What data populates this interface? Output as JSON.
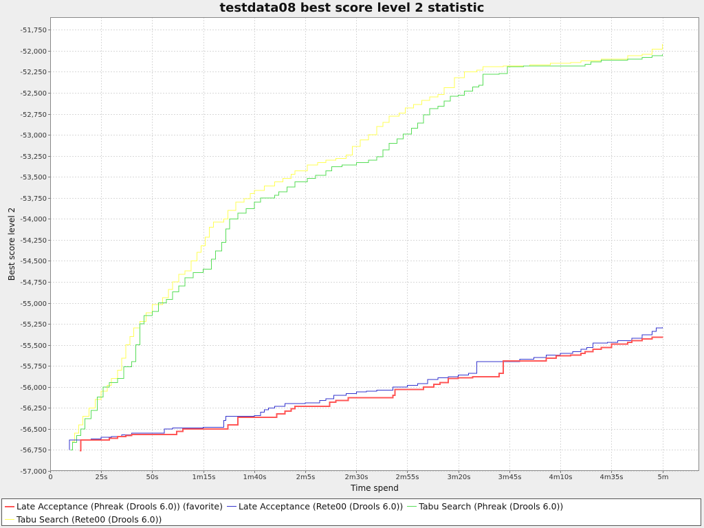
{
  "chart_data": {
    "type": "line",
    "title": "testdata08 best score level 2 statistic",
    "xlabel": "Time spend",
    "ylabel": "Best score level 2",
    "xlim": [
      0,
      318
    ],
    "ylim": [
      -57000,
      -51600
    ],
    "grid": true,
    "legend_position": "bottom",
    "x_ticks": [
      {
        "value": 0,
        "label": "0"
      },
      {
        "value": 25,
        "label": "25s"
      },
      {
        "value": 50,
        "label": "50s"
      },
      {
        "value": 75,
        "label": "1m15s"
      },
      {
        "value": 100,
        "label": "1m40s"
      },
      {
        "value": 125,
        "label": "2m5s"
      },
      {
        "value": 150,
        "label": "2m30s"
      },
      {
        "value": 175,
        "label": "2m55s"
      },
      {
        "value": 200,
        "label": "3m20s"
      },
      {
        "value": 225,
        "label": "3m45s"
      },
      {
        "value": 250,
        "label": "4m10s"
      },
      {
        "value": 275,
        "label": "4m35s"
      },
      {
        "value": 300,
        "label": "5m"
      }
    ],
    "y_ticks": [
      {
        "value": -51750,
        "label": "-51,750"
      },
      {
        "value": -52000,
        "label": "-52,000"
      },
      {
        "value": -52250,
        "label": "-52,250"
      },
      {
        "value": -52500,
        "label": "-52,500"
      },
      {
        "value": -52750,
        "label": "-52,750"
      },
      {
        "value": -53000,
        "label": "-53,000"
      },
      {
        "value": -53250,
        "label": "-53,250"
      },
      {
        "value": -53500,
        "label": "-53,500"
      },
      {
        "value": -53750,
        "label": "-53,750"
      },
      {
        "value": -54000,
        "label": "-54,000"
      },
      {
        "value": -54250,
        "label": "-54,250"
      },
      {
        "value": -54500,
        "label": "-54,500"
      },
      {
        "value": -54750,
        "label": "-54,750"
      },
      {
        "value": -55000,
        "label": "-55,000"
      },
      {
        "value": -55250,
        "label": "-55,250"
      },
      {
        "value": -55500,
        "label": "-55,500"
      },
      {
        "value": -55750,
        "label": "-55,750"
      },
      {
        "value": -56000,
        "label": "-56,000"
      },
      {
        "value": -56250,
        "label": "-56,250"
      },
      {
        "value": -56500,
        "label": "-56,500"
      },
      {
        "value": -56750,
        "label": "-56,750"
      },
      {
        "value": -57000,
        "label": "-57,000"
      }
    ],
    "series": [
      {
        "name": "Late Acceptance (Phreak (Drools 6.0)) (favorite)",
        "color": "#ff5555",
        "points": [
          [
            14.5,
            -56760
          ],
          [
            15,
            -56630
          ],
          [
            20,
            -56630
          ],
          [
            25,
            -56630
          ],
          [
            29,
            -56610
          ],
          [
            33,
            -56590
          ],
          [
            37,
            -56580
          ],
          [
            40,
            -56565
          ],
          [
            50,
            -56565
          ],
          [
            55,
            -56565
          ],
          [
            61,
            -56565
          ],
          [
            62,
            -56530
          ],
          [
            65,
            -56500
          ],
          [
            75,
            -56500
          ],
          [
            85,
            -56500
          ],
          [
            87,
            -56450
          ],
          [
            91,
            -56450
          ],
          [
            92,
            -56360
          ],
          [
            100,
            -56360
          ],
          [
            110,
            -56360
          ],
          [
            111,
            -56320
          ],
          [
            115,
            -56290
          ],
          [
            118,
            -56260
          ],
          [
            120,
            -56230
          ],
          [
            125,
            -56230
          ],
          [
            136,
            -56230
          ],
          [
            137,
            -56180
          ],
          [
            140,
            -56160
          ],
          [
            146,
            -56130
          ],
          [
            150,
            -56130
          ],
          [
            160,
            -56130
          ],
          [
            166,
            -56130
          ],
          [
            168,
            -56100
          ],
          [
            169,
            -56030
          ],
          [
            180,
            -56030
          ],
          [
            183,
            -56000
          ],
          [
            188,
            -55970
          ],
          [
            191,
            -55950
          ],
          [
            195,
            -55900
          ],
          [
            200,
            -55890
          ],
          [
            207,
            -55880
          ],
          [
            220,
            -55840
          ],
          [
            222,
            -55690
          ],
          [
            240,
            -55690
          ],
          [
            243,
            -55660
          ],
          [
            248,
            -55630
          ],
          [
            255,
            -55620
          ],
          [
            260,
            -55600
          ],
          [
            262,
            -55580
          ],
          [
            266,
            -55550
          ],
          [
            270,
            -55530
          ],
          [
            275,
            -55490
          ],
          [
            283,
            -55470
          ],
          [
            285,
            -55450
          ],
          [
            290,
            -55430
          ],
          [
            295,
            -55410
          ],
          [
            300,
            -55400
          ]
        ]
      },
      {
        "name": "Late Acceptance (Rete00 (Drools 6.0))",
        "color": "#3333cc",
        "points": [
          [
            9.5,
            -56750
          ],
          [
            9.5,
            -56630
          ],
          [
            14,
            -56630
          ],
          [
            20,
            -56620
          ],
          [
            25,
            -56600
          ],
          [
            30,
            -56590
          ],
          [
            35,
            -56570
          ],
          [
            40,
            -56550
          ],
          [
            55,
            -56550
          ],
          [
            56,
            -56500
          ],
          [
            60,
            -56490
          ],
          [
            65,
            -56490
          ],
          [
            75,
            -56480
          ],
          [
            85,
            -56400
          ],
          [
            86,
            -56350
          ],
          [
            100,
            -56340
          ],
          [
            103,
            -56300
          ],
          [
            105,
            -56270
          ],
          [
            107,
            -56250
          ],
          [
            110,
            -56230
          ],
          [
            115,
            -56200
          ],
          [
            125,
            -56190
          ],
          [
            130,
            -56190
          ],
          [
            132,
            -56160
          ],
          [
            135,
            -56140
          ],
          [
            139,
            -56100
          ],
          [
            145,
            -56080
          ],
          [
            150,
            -56060
          ],
          [
            155,
            -56050
          ],
          [
            160,
            -56040
          ],
          [
            165,
            -56040
          ],
          [
            168,
            -56000
          ],
          [
            170,
            -56000
          ],
          [
            175,
            -55980
          ],
          [
            180,
            -55960
          ],
          [
            185,
            -55910
          ],
          [
            190,
            -55890
          ],
          [
            195,
            -55880
          ],
          [
            200,
            -55860
          ],
          [
            205,
            -55840
          ],
          [
            209,
            -55700
          ],
          [
            220,
            -55700
          ],
          [
            230,
            -55670
          ],
          [
            237,
            -55650
          ],
          [
            243,
            -55620
          ],
          [
            250,
            -55600
          ],
          [
            256,
            -55580
          ],
          [
            260,
            -55550
          ],
          [
            263,
            -55530
          ],
          [
            266,
            -55480
          ],
          [
            273,
            -55470
          ],
          [
            278,
            -55450
          ],
          [
            285,
            -55420
          ],
          [
            290,
            -55380
          ],
          [
            295,
            -55340
          ],
          [
            297,
            -55300
          ],
          [
            300,
            -55290
          ]
        ]
      },
      {
        "name": "Tabu Search (Phreak (Drools 6.0))",
        "color": "#55dd55",
        "points": [
          [
            10,
            -56750
          ],
          [
            11,
            -56660
          ],
          [
            13,
            -56580
          ],
          [
            15,
            -56500
          ],
          [
            17,
            -56380
          ],
          [
            20,
            -56280
          ],
          [
            23,
            -56120
          ],
          [
            26,
            -56000
          ],
          [
            29,
            -55950
          ],
          [
            33,
            -55900
          ],
          [
            36,
            -55760
          ],
          [
            40,
            -55700
          ],
          [
            42,
            -55500
          ],
          [
            44,
            -55250
          ],
          [
            46,
            -55150
          ],
          [
            50,
            -55100
          ],
          [
            53,
            -55000
          ],
          [
            57,
            -54960
          ],
          [
            60,
            -54870
          ],
          [
            63,
            -54800
          ],
          [
            66,
            -54700
          ],
          [
            70,
            -54640
          ],
          [
            75,
            -54600
          ],
          [
            79,
            -54480
          ],
          [
            81,
            -54380
          ],
          [
            84,
            -54280
          ],
          [
            86,
            -54120
          ],
          [
            88,
            -54000
          ],
          [
            92,
            -53930
          ],
          [
            96,
            -53880
          ],
          [
            100,
            -53800
          ],
          [
            103,
            -53750
          ],
          [
            110,
            -53720
          ],
          [
            112,
            -53680
          ],
          [
            116,
            -53620
          ],
          [
            120,
            -53560
          ],
          [
            126,
            -53520
          ],
          [
            130,
            -53480
          ],
          [
            135,
            -53430
          ],
          [
            138,
            -53380
          ],
          [
            143,
            -53360
          ],
          [
            150,
            -53330
          ],
          [
            156,
            -53300
          ],
          [
            160,
            -53260
          ],
          [
            163,
            -53180
          ],
          [
            166,
            -53100
          ],
          [
            170,
            -53050
          ],
          [
            173,
            -52990
          ],
          [
            177,
            -52920
          ],
          [
            180,
            -52860
          ],
          [
            183,
            -52760
          ],
          [
            186,
            -52690
          ],
          [
            190,
            -52660
          ],
          [
            193,
            -52600
          ],
          [
            196,
            -52540
          ],
          [
            200,
            -52530
          ],
          [
            203,
            -52480
          ],
          [
            207,
            -52430
          ],
          [
            210,
            -52410
          ],
          [
            212,
            -52280
          ],
          [
            220,
            -52270
          ],
          [
            224,
            -52190
          ],
          [
            232,
            -52180
          ],
          [
            255,
            -52180
          ],
          [
            262,
            -52160
          ],
          [
            265,
            -52130
          ],
          [
            270,
            -52110
          ],
          [
            280,
            -52110
          ],
          [
            283,
            -52100
          ],
          [
            290,
            -52080
          ],
          [
            295,
            -52060
          ],
          [
            300,
            -52040
          ]
        ]
      },
      {
        "name": "Tabu Search (Rete00 (Drools 6.0))",
        "color": "#ffff55",
        "points": [
          [
            10,
            -56750
          ],
          [
            11,
            -56650
          ],
          [
            12,
            -56550
          ],
          [
            14,
            -56450
          ],
          [
            16,
            -56350
          ],
          [
            19,
            -56250
          ],
          [
            22,
            -56150
          ],
          [
            25,
            -56050
          ],
          [
            28,
            -55980
          ],
          [
            30,
            -55900
          ],
          [
            33,
            -55800
          ],
          [
            35,
            -55660
          ],
          [
            37,
            -55500
          ],
          [
            39,
            -55400
          ],
          [
            41,
            -55300
          ],
          [
            44,
            -55220
          ],
          [
            47,
            -55120
          ],
          [
            50,
            -55020
          ],
          [
            55,
            -54940
          ],
          [
            58,
            -54840
          ],
          [
            60,
            -54750
          ],
          [
            63,
            -54660
          ],
          [
            66,
            -54620
          ],
          [
            69,
            -54500
          ],
          [
            72,
            -54400
          ],
          [
            74,
            -54320
          ],
          [
            76,
            -54220
          ],
          [
            78,
            -54100
          ],
          [
            80,
            -54040
          ],
          [
            85,
            -54000
          ],
          [
            87,
            -53900
          ],
          [
            91,
            -53800
          ],
          [
            95,
            -53760
          ],
          [
            98,
            -53700
          ],
          [
            100,
            -53660
          ],
          [
            105,
            -53610
          ],
          [
            110,
            -53560
          ],
          [
            114,
            -53520
          ],
          [
            118,
            -53470
          ],
          [
            120,
            -53430
          ],
          [
            126,
            -53360
          ],
          [
            131,
            -53330
          ],
          [
            135,
            -53300
          ],
          [
            140,
            -53280
          ],
          [
            145,
            -53240
          ],
          [
            148,
            -53140
          ],
          [
            152,
            -53060
          ],
          [
            156,
            -53000
          ],
          [
            160,
            -52900
          ],
          [
            163,
            -52850
          ],
          [
            166,
            -52780
          ],
          [
            171,
            -52740
          ],
          [
            174,
            -52680
          ],
          [
            178,
            -52640
          ],
          [
            182,
            -52590
          ],
          [
            186,
            -52550
          ],
          [
            190,
            -52520
          ],
          [
            193,
            -52440
          ],
          [
            196,
            -52440
          ],
          [
            198,
            -52320
          ],
          [
            203,
            -52250
          ],
          [
            209,
            -52230
          ],
          [
            212,
            -52190
          ],
          [
            222,
            -52180
          ],
          [
            235,
            -52170
          ],
          [
            245,
            -52150
          ],
          [
            255,
            -52140
          ],
          [
            260,
            -52120
          ],
          [
            270,
            -52100
          ],
          [
            283,
            -52060
          ],
          [
            290,
            -52040
          ],
          [
            295,
            -51980
          ],
          [
            300,
            -51920
          ]
        ]
      }
    ]
  }
}
